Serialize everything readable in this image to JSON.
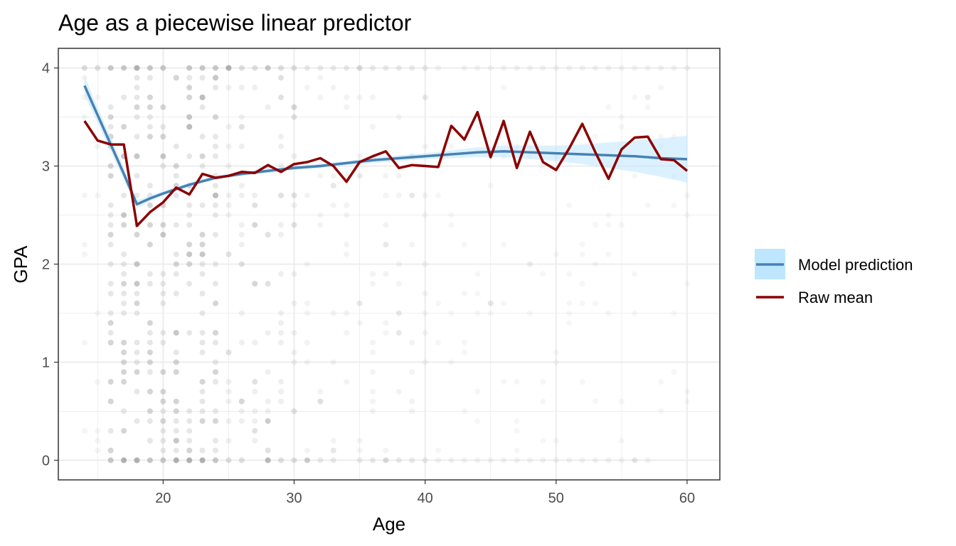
{
  "chart_data": {
    "type": "line",
    "title": "Age as a piecewise linear predictor",
    "xlabel": "Age",
    "ylabel": "GPA",
    "xlim": [
      12,
      62.5
    ],
    "ylim": [
      -0.2,
      4.2
    ],
    "x_ticks": [
      20,
      30,
      40,
      50,
      60
    ],
    "y_ticks": [
      0,
      1,
      2,
      3,
      4
    ],
    "grid": true,
    "legend_position": "right",
    "colors": {
      "prediction_line": "#4682b4",
      "prediction_band": "#bfe6ff",
      "raw_mean_line": "#8b0000",
      "points": "#9e9e9e",
      "grid": "#ebebeb",
      "panel_border": "#333333"
    },
    "legend": [
      {
        "key": "prediction",
        "label": "Model prediction"
      },
      {
        "key": "raw",
        "label": "Raw mean"
      }
    ],
    "series": [
      {
        "key": "prediction",
        "x": [
          14,
          15,
          16,
          17,
          18,
          19,
          20,
          22,
          24,
          26,
          28,
          30,
          32,
          34,
          36,
          38,
          40,
          42,
          44,
          46,
          48,
          50,
          52,
          54,
          56,
          58,
          60
        ],
        "y": [
          3.82,
          3.52,
          3.22,
          2.92,
          2.61,
          2.67,
          2.72,
          2.81,
          2.88,
          2.92,
          2.95,
          2.98,
          3.0,
          3.03,
          3.06,
          3.08,
          3.1,
          3.12,
          3.14,
          3.15,
          3.14,
          3.13,
          3.12,
          3.11,
          3.1,
          3.08,
          3.07
        ],
        "lower": [
          3.72,
          3.44,
          3.15,
          2.86,
          2.57,
          2.64,
          2.7,
          2.79,
          2.86,
          2.9,
          2.93,
          2.96,
          2.98,
          3.01,
          3.03,
          3.05,
          3.07,
          3.08,
          3.09,
          3.09,
          3.07,
          3.05,
          3.02,
          2.98,
          2.94,
          2.89,
          2.83
        ],
        "upper": [
          3.92,
          3.6,
          3.29,
          2.98,
          2.65,
          2.7,
          2.74,
          2.83,
          2.9,
          2.94,
          2.97,
          3.0,
          3.02,
          3.05,
          3.09,
          3.11,
          3.13,
          3.16,
          3.19,
          3.21,
          3.21,
          3.21,
          3.22,
          3.24,
          3.26,
          3.28,
          3.31
        ]
      },
      {
        "key": "raw",
        "x": [
          14,
          15,
          16,
          17,
          18,
          19,
          20,
          21,
          22,
          23,
          24,
          25,
          26,
          27,
          28,
          29,
          30,
          31,
          32,
          33,
          34,
          35,
          36,
          37,
          38,
          39,
          40,
          41,
          42,
          43,
          44,
          45,
          46,
          47,
          48,
          49,
          50,
          51,
          52,
          53,
          54,
          55,
          56,
          57,
          58,
          59,
          60
        ],
        "y": [
          3.46,
          3.26,
          3.22,
          3.22,
          2.39,
          2.53,
          2.63,
          2.78,
          2.71,
          2.92,
          2.88,
          2.9,
          2.94,
          2.93,
          3.01,
          2.94,
          3.02,
          3.04,
          3.08,
          3.0,
          2.84,
          3.04,
          3.1,
          3.15,
          2.98,
          3.01,
          3.0,
          2.99,
          3.41,
          3.27,
          3.55,
          3.09,
          3.46,
          2.98,
          3.35,
          3.04,
          2.96,
          3.18,
          3.43,
          3.14,
          2.87,
          3.17,
          3.29,
          3.3,
          3.07,
          3.06,
          2.95
        ]
      }
    ]
  }
}
